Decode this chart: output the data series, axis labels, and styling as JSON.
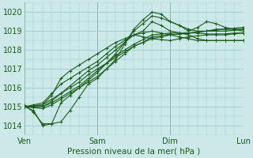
{
  "bg_color": "#cce8e8",
  "grid_color": "#99cccc",
  "line_color": "#1a5c1a",
  "title": "Pression niveau de la mer( hPa )",
  "ylabel_values": [
    1014,
    1015,
    1016,
    1017,
    1018,
    1019,
    1020
  ],
  "xlabels": [
    "Ven",
    "Sam",
    "Dim",
    "Lun"
  ],
  "xtick_pos": [
    0,
    24,
    48,
    72
  ],
  "xlim": [
    0,
    72
  ],
  "ylim": [
    1013.5,
    1020.5
  ],
  "series": [
    {
      "x": [
        0,
        3,
        6,
        9,
        12,
        15,
        18,
        21,
        24,
        27,
        30,
        33,
        36,
        39,
        42,
        45,
        48,
        51,
        54,
        57,
        60,
        63,
        66,
        69,
        72
      ],
      "y": [
        1015.0,
        1015.05,
        1015.1,
        1015.4,
        1015.7,
        1016.0,
        1016.3,
        1016.7,
        1017.0,
        1017.3,
        1017.6,
        1017.9,
        1018.2,
        1018.4,
        1018.6,
        1018.7,
        1018.8,
        1018.85,
        1018.9,
        1018.95,
        1019.0,
        1019.0,
        1019.0,
        1019.05,
        1019.1
      ]
    },
    {
      "x": [
        0,
        3,
        6,
        9,
        12,
        15,
        18,
        21,
        24,
        27,
        30,
        33,
        36,
        39,
        42,
        45,
        48,
        51,
        54,
        57,
        60,
        63,
        66,
        69,
        72
      ],
      "y": [
        1015.0,
        1014.8,
        1014.0,
        1014.1,
        1014.2,
        1014.8,
        1015.5,
        1016.2,
        1016.5,
        1017.0,
        1017.5,
        1018.3,
        1019.1,
        1019.6,
        1020.0,
        1019.9,
        1019.5,
        1019.3,
        1019.0,
        1019.2,
        1019.5,
        1019.4,
        1019.2,
        1019.1,
        1019.0
      ]
    },
    {
      "x": [
        0,
        3,
        6,
        9,
        12,
        15,
        18,
        21,
        24,
        27,
        30,
        33,
        36,
        39,
        42,
        45,
        48,
        51,
        54,
        57,
        60,
        63,
        66,
        69,
        72
      ],
      "y": [
        1015.0,
        1015.0,
        1015.0,
        1015.3,
        1015.7,
        1016.1,
        1016.5,
        1016.9,
        1017.2,
        1017.6,
        1018.0,
        1018.4,
        1018.8,
        1018.9,
        1019.0,
        1018.9,
        1018.8,
        1018.7,
        1018.6,
        1018.5,
        1018.5,
        1018.5,
        1018.5,
        1018.5,
        1018.5
      ]
    },
    {
      "x": [
        0,
        3,
        6,
        9,
        12,
        15,
        18,
        21,
        24,
        27,
        30,
        33,
        36,
        39,
        42,
        45,
        48,
        51,
        54,
        57,
        60,
        63,
        66,
        69,
        72
      ],
      "y": [
        1015.0,
        1015.1,
        1015.2,
        1015.7,
        1016.2,
        1016.5,
        1016.8,
        1017.1,
        1017.4,
        1017.8,
        1018.2,
        1018.5,
        1018.8,
        1018.7,
        1018.6,
        1018.55,
        1018.5,
        1018.6,
        1018.7,
        1018.75,
        1018.8,
        1018.8,
        1018.8,
        1018.85,
        1018.9
      ]
    },
    {
      "x": [
        0,
        3,
        6,
        9,
        12,
        15,
        18,
        21,
        24,
        27,
        30,
        33,
        36,
        39,
        42,
        45,
        48,
        51,
        54,
        57,
        60,
        63,
        66,
        69,
        72
      ],
      "y": [
        1015.0,
        1015.05,
        1015.1,
        1015.6,
        1016.5,
        1016.9,
        1017.2,
        1017.5,
        1017.8,
        1018.1,
        1018.4,
        1018.6,
        1018.8,
        1019.0,
        1019.5,
        1019.3,
        1019.0,
        1018.9,
        1018.8,
        1018.6,
        1018.5,
        1018.5,
        1018.5,
        1018.5,
        1018.5
      ]
    },
    {
      "x": [
        0,
        3,
        6,
        9,
        12,
        15,
        18,
        21,
        24,
        27,
        30,
        33,
        36,
        39,
        42,
        45,
        48,
        51,
        54,
        57,
        60,
        63,
        66,
        69,
        72
      ],
      "y": [
        1015.1,
        1014.7,
        1014.1,
        1014.1,
        1015.2,
        1015.6,
        1016.0,
        1016.4,
        1016.8,
        1017.3,
        1017.8,
        1018.4,
        1019.0,
        1019.4,
        1019.8,
        1019.7,
        1019.5,
        1019.3,
        1019.1,
        1019.0,
        1019.0,
        1019.1,
        1019.1,
        1019.15,
        1019.2
      ]
    },
    {
      "x": [
        0,
        3,
        6,
        9,
        12,
        15,
        18,
        21,
        24,
        27,
        30,
        33,
        36,
        39,
        42,
        45,
        48,
        51,
        54,
        57,
        60,
        63,
        66,
        69,
        72
      ],
      "y": [
        1015.0,
        1015.0,
        1015.0,
        1015.2,
        1015.5,
        1015.8,
        1016.1,
        1016.5,
        1016.9,
        1017.3,
        1017.7,
        1018.0,
        1018.3,
        1018.55,
        1018.8,
        1018.85,
        1018.9,
        1018.9,
        1018.9,
        1018.95,
        1019.0,
        1019.05,
        1019.1,
        1019.1,
        1019.1
      ]
    },
    {
      "x": [
        0,
        3,
        6,
        9,
        12,
        15,
        18,
        21,
        24,
        27,
        30,
        33,
        36,
        39,
        42,
        45,
        48,
        51,
        54,
        57,
        60,
        63,
        66,
        69,
        72
      ],
      "y": [
        1015.0,
        1014.95,
        1014.9,
        1015.1,
        1015.4,
        1015.7,
        1016.0,
        1016.3,
        1016.6,
        1017.0,
        1017.4,
        1017.8,
        1018.2,
        1018.4,
        1018.7,
        1018.75,
        1018.8,
        1018.85,
        1018.9,
        1018.9,
        1018.85,
        1018.85,
        1018.85,
        1018.9,
        1018.9
      ]
    }
  ]
}
